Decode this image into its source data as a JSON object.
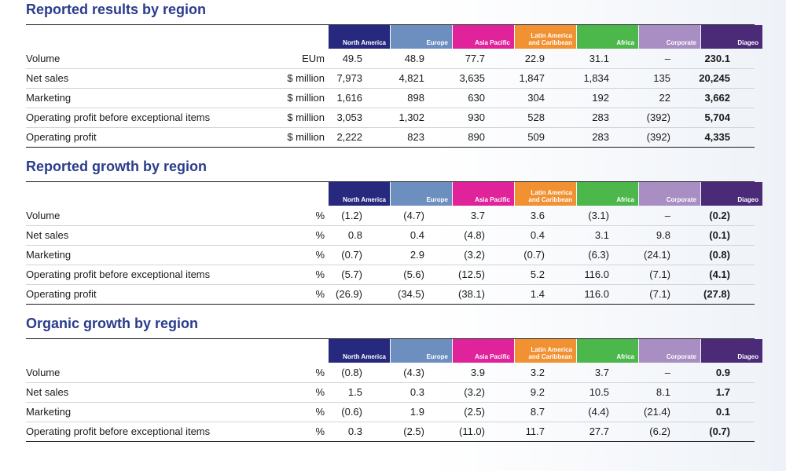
{
  "columns": [
    {
      "name": "North America",
      "color": "#27297f"
    },
    {
      "name": "Europe",
      "color": "#6c8fc0"
    },
    {
      "name": "Asia Pacific",
      "color": "#e0239a"
    },
    {
      "name": "Latin America and Caribbean",
      "line1": "Latin America",
      "line2": "and Caribbean",
      "color": "#f19132"
    },
    {
      "name": "Africa",
      "color": "#4cb74a"
    },
    {
      "name": "Corporate",
      "color": "#a88ec3"
    },
    {
      "name": "Diageo",
      "color": "#4b2a78"
    }
  ],
  "sections": [
    {
      "title": "Reported results by region",
      "rows": [
        {
          "label": "Volume",
          "unit": "EUm",
          "values": [
            "49.5",
            "48.9",
            "77.7",
            "22.9",
            "31.1",
            "–",
            "230.1"
          ]
        },
        {
          "label": "Net sales",
          "unit": "$ million",
          "values": [
            "7,973",
            "4,821",
            "3,635",
            "1,847",
            "1,834",
            "135",
            "20,245"
          ]
        },
        {
          "label": "Marketing",
          "unit": "$ million",
          "values": [
            "1,616",
            "898",
            "630",
            "304",
            "192",
            "22",
            "3,662"
          ]
        },
        {
          "label": "Operating profit before exceptional items",
          "unit": "$ million",
          "values": [
            "3,053",
            "1,302",
            "930",
            "528",
            "283",
            "(392)",
            "5,704"
          ]
        },
        {
          "label": "Operating profit",
          "unit": "$ million",
          "values": [
            "2,222",
            "823",
            "890",
            "509",
            "283",
            "(392)",
            "4,335"
          ]
        }
      ]
    },
    {
      "title": "Reported growth by region",
      "rows": [
        {
          "label": "Volume",
          "unit": "%",
          "values": [
            "(1.2)",
            "(4.7)",
            "3.7",
            "3.6",
            "(3.1)",
            "–",
            "(0.2)"
          ]
        },
        {
          "label": "Net sales",
          "unit": "%",
          "values": [
            "0.8",
            "0.4",
            "(4.8)",
            "0.4",
            "3.1",
            "9.8",
            "(0.1)"
          ]
        },
        {
          "label": "Marketing",
          "unit": "%",
          "values": [
            "(0.7)",
            "2.9",
            "(3.2)",
            "(0.7)",
            "(6.3)",
            "(24.1)",
            "(0.8)"
          ]
        },
        {
          "label": "Operating profit before exceptional items",
          "unit": "%",
          "values": [
            "(5.7)",
            "(5.6)",
            "(12.5)",
            "5.2",
            "116.0",
            "(7.1)",
            "(4.1)"
          ]
        },
        {
          "label": "Operating profit",
          "unit": "%",
          "values": [
            "(26.9)",
            "(34.5)",
            "(38.1)",
            "1.4",
            "116.0",
            "(7.1)",
            "(27.8)"
          ]
        }
      ]
    },
    {
      "title": "Organic growth by region",
      "rows": [
        {
          "label": "Volume",
          "unit": "%",
          "values": [
            "(0.8)",
            "(4.3)",
            "3.9",
            "3.2",
            "3.7",
            "–",
            "0.9"
          ]
        },
        {
          "label": "Net sales",
          "unit": "%",
          "values": [
            "1.5",
            "0.3",
            "(3.2)",
            "9.2",
            "10.5",
            "8.1",
            "1.7"
          ]
        },
        {
          "label": "Marketing",
          "unit": "%",
          "values": [
            "(0.6)",
            "1.9",
            "(2.5)",
            "8.7",
            "(4.4)",
            "(21.4)",
            "0.1"
          ]
        },
        {
          "label": "Operating profit before exceptional items",
          "unit": "%",
          "values": [
            "0.3",
            "(2.5)",
            "(11.0)",
            "11.7",
            "27.7",
            "(6.2)",
            "(0.7)"
          ]
        }
      ]
    }
  ]
}
